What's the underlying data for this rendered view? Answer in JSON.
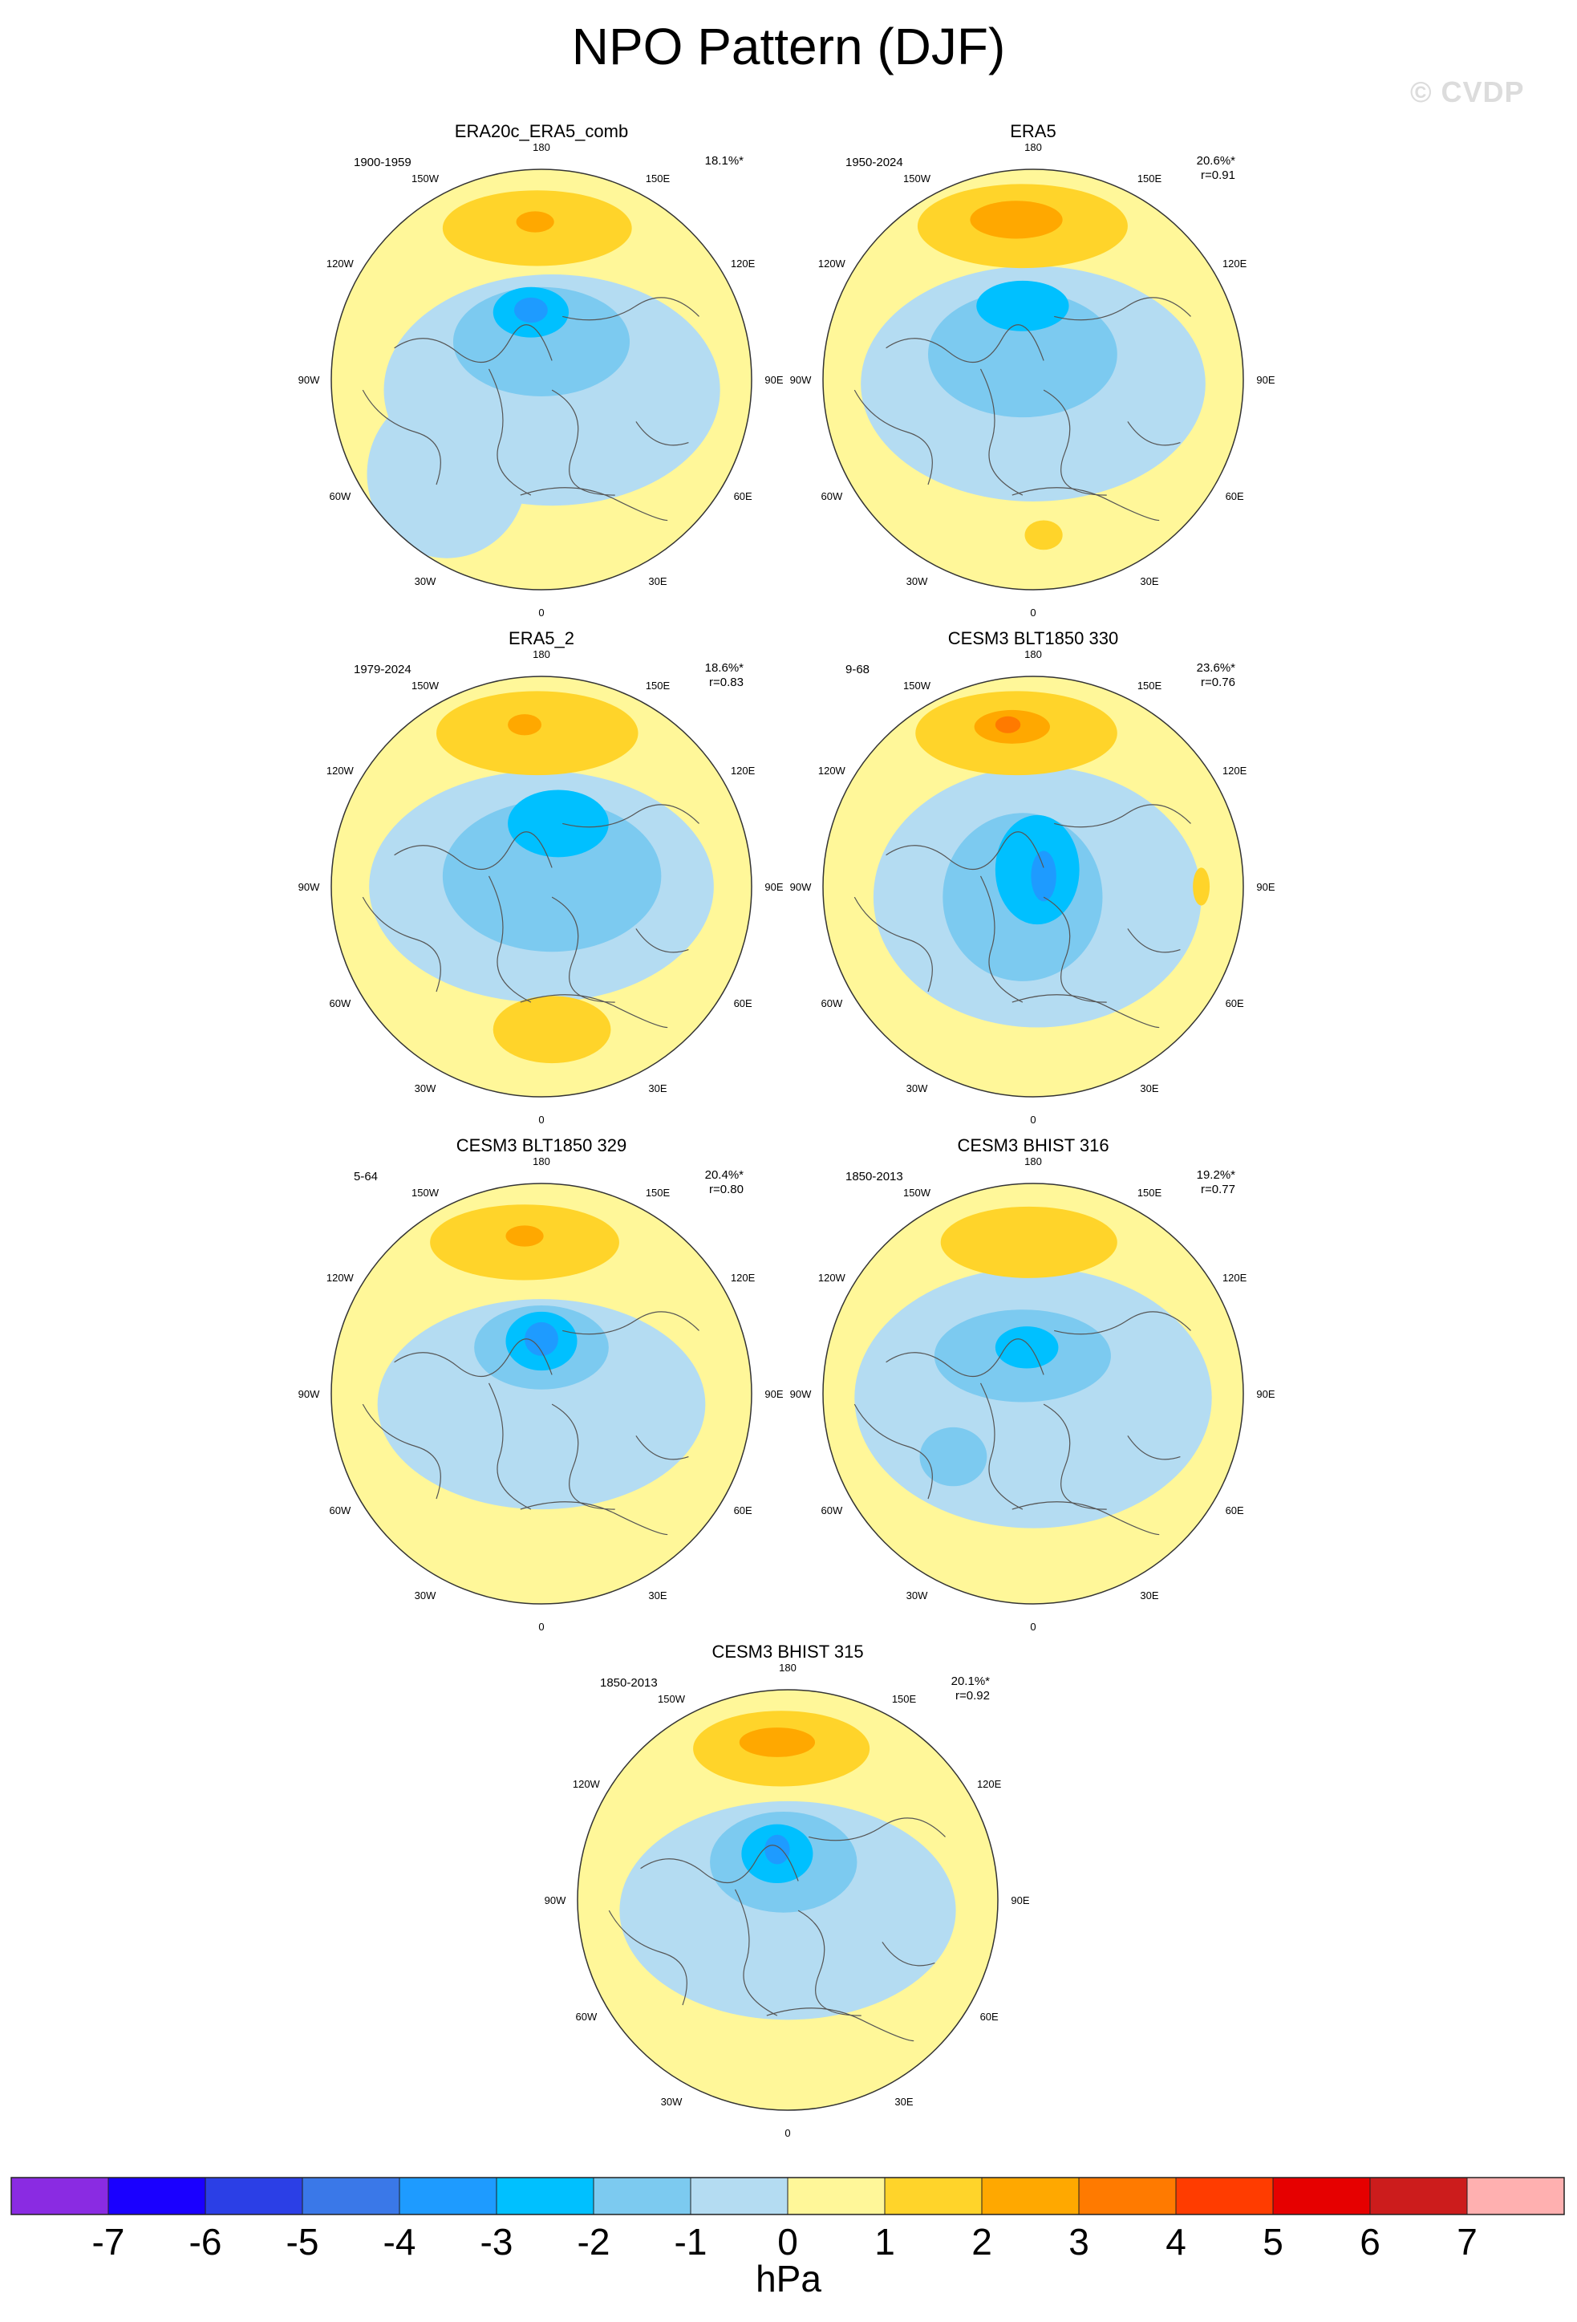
{
  "title": "NPO Pattern (DJF)",
  "watermark": "© CVDP",
  "panels": [
    {
      "name": "ERA20c_ERA5_comb",
      "period": "1900-1959",
      "pct": "18.1%*",
      "r": ""
    },
    {
      "name": "ERA5",
      "period": "1950-2024",
      "pct": "20.6%*",
      "r": "r=0.91"
    },
    {
      "name": "ERA5_2",
      "period": "1979-2024",
      "pct": "18.6%*",
      "r": "r=0.83"
    },
    {
      "name": "CESM3 BLT1850 330",
      "period": "9-68",
      "pct": "23.6%*",
      "r": "r=0.76"
    },
    {
      "name": "CESM3 BLT1850 329",
      "period": "5-64",
      "pct": "20.4%*",
      "r": "r=0.80"
    },
    {
      "name": "CESM3 BHIST 316",
      "period": "1850-2013",
      "pct": "19.2%*",
      "r": "r=0.77"
    },
    {
      "name": "CESM3 BHIST 315",
      "period": "1850-2013",
      "pct": "20.1%*",
      "r": "r=0.92"
    }
  ],
  "longitude_labels": [
    "180",
    "150E",
    "120E",
    "90E",
    "60E",
    "30E",
    "0",
    "30W",
    "60W",
    "90W",
    "120W",
    "150W"
  ],
  "colorbar": {
    "unit": "hPa",
    "tick_labels": [
      "-7",
      "-6",
      "-5",
      "-4",
      "-3",
      "-2",
      "-1",
      "0",
      "1",
      "2",
      "3",
      "4",
      "5",
      "6",
      "7"
    ],
    "colors": [
      "#8a2be2",
      "#1a00ff",
      "#2b3fe6",
      "#3a78e8",
      "#1e9bff",
      "#00c0ff",
      "#7ccaf0",
      "#b4dcf2",
      "#fff799",
      "#ffd42a",
      "#ffa800",
      "#ff7a00",
      "#ff3c00",
      "#e60000",
      "#cc1c1c",
      "#ffb0b0"
    ]
  },
  "colors": {
    "pos1": "#fff799",
    "pos2": "#ffd42a",
    "pos3": "#ffa800",
    "pos4": "#ff7a00",
    "neg1": "#b4dcf2",
    "neg2": "#7ccaf0",
    "neg3": "#00c0ff",
    "neg4": "#1e9bff",
    "neg5": "#3a78e8",
    "neg6": "#2b3fe6"
  }
}
